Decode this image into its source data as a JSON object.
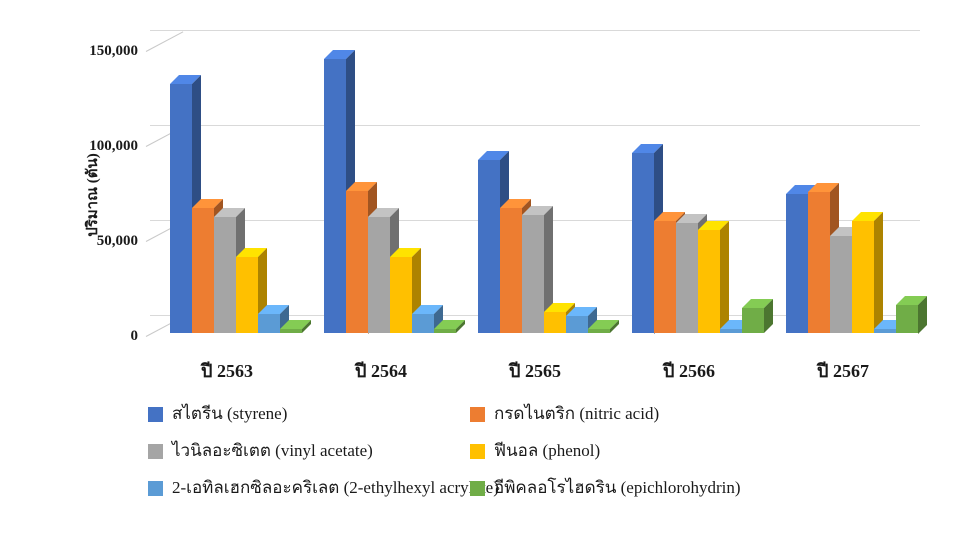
{
  "background_color": "#ffffff",
  "gridline_color": "#d9d9d9",
  "chart_data": {
    "type": "bar",
    "style_3d": true,
    "title": "",
    "xlabel": "",
    "ylabel": "ปริมาณ (ตัน)",
    "categories": [
      "ปี 2563",
      "ปี 2564",
      "ปี 2565",
      "ปี 2566",
      "ปี 2567"
    ],
    "series": [
      {
        "name": "สไตรีน (styrene)",
        "color": "#4472C4",
        "values": [
          131000,
          144000,
          91000,
          95000,
          73000
        ]
      },
      {
        "name": "กรดไนตริก (nitric acid)",
        "color": "#ED7D31",
        "values": [
          66000,
          75000,
          66000,
          59000,
          74000
        ]
      },
      {
        "name": "ไวนิลอะซิเตต (vinyl acetate)",
        "color": "#A5A5A5",
        "values": [
          61000,
          61000,
          62000,
          58000,
          51000
        ]
      },
      {
        "name": "ฟีนอล (phenol)",
        "color": "#FFC000",
        "values": [
          40000,
          40000,
          11000,
          54000,
          59000
        ]
      },
      {
        "name": "2-เอทิลเฮกซิลอะคริเลต (2-ethylhexyl acrylate)",
        "color": "#5B9BD5",
        "values": [
          10000,
          10000,
          9000,
          2000,
          2000
        ]
      },
      {
        "name": "อีพิคลอโรไฮดริน (epichlorohydrin)",
        "color": "#70AD47",
        "values": [
          2000,
          2000,
          2000,
          13000,
          15000
        ]
      }
    ],
    "ylim": [
      0,
      150000
    ],
    "ytick_step": 50000,
    "ytick_labels": [
      "0",
      "50,000",
      "100,000",
      "150,000"
    ],
    "grid": true,
    "legend_position": "bottom",
    "legend_columns": 2
  }
}
